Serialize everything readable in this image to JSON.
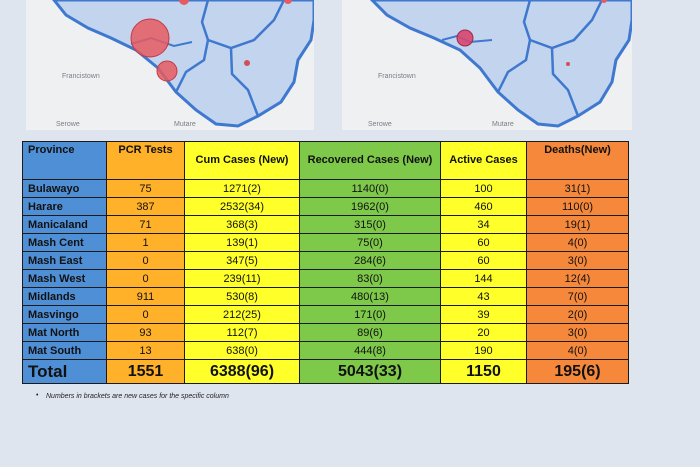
{
  "maps": {
    "left": {
      "labels": [
        "Francistown",
        "Serowe",
        "Mutare"
      ]
    },
    "right": {
      "labels": [
        "Francistown",
        "Serowe",
        "Mutare"
      ]
    }
  },
  "table": {
    "headers": {
      "province": "Province",
      "pcr": "PCR Tests",
      "cum": "Cum Cases (New)",
      "recovered": "Recovered Cases (New)",
      "active": "Active Cases",
      "deaths": "Deaths(New)"
    },
    "rows": [
      {
        "province": "Bulawayo",
        "pcr": "75",
        "cum": "1271(2)",
        "recovered": "1140(0)",
        "active": "100",
        "deaths": "31(1)"
      },
      {
        "province": "Harare",
        "pcr": "387",
        "cum": "2532(34)",
        "recovered": "1962(0)",
        "active": "460",
        "deaths": "110(0)"
      },
      {
        "province": "Manicaland",
        "pcr": "71",
        "cum": "368(3)",
        "recovered": "315(0)",
        "active": "34",
        "deaths": "19(1)"
      },
      {
        "province": "Mash Cent",
        "pcr": "1",
        "cum": "139(1)",
        "recovered": "75(0)",
        "active": "60",
        "deaths": "4(0)"
      },
      {
        "province": "Mash East",
        "pcr": "0",
        "cum": "347(5)",
        "recovered": "284(6)",
        "active": "60",
        "deaths": "3(0)"
      },
      {
        "province": "Mash West",
        "pcr": "0",
        "cum": "239(11)",
        "recovered": "83(0)",
        "active": "144",
        "deaths": "12(4)"
      },
      {
        "province": "Midlands",
        "pcr": "911",
        "cum": "530(8)",
        "recovered": "480(13)",
        "active": "43",
        "deaths": "7(0)"
      },
      {
        "province": "Masvingo",
        "pcr": "0",
        "cum": "212(25)",
        "recovered": "171(0)",
        "active": "39",
        "deaths": "2(0)"
      },
      {
        "province": "Mat North",
        "pcr": "93",
        "cum": "112(7)",
        "recovered": "89(6)",
        "active": "20",
        "deaths": "3(0)"
      },
      {
        "province": "Mat South",
        "pcr": "13",
        "cum": "638(0)",
        "recovered": "444(8)",
        "active": "190",
        "deaths": "4(0)"
      }
    ],
    "total": {
      "label": "Total",
      "pcr": "1551",
      "cum": "6388(96)",
      "recovered": "5043(33)",
      "active": "1150",
      "deaths": "195(6)"
    }
  },
  "footnote": "Numbers in brackets are new cases for the specific column",
  "colors": {
    "province": "#4f8fd6",
    "pcr": "#ffb129",
    "cum": "#ffff2a",
    "recovered": "#7ec84a",
    "active": "#ffff2a",
    "deaths": "#f5883a"
  }
}
